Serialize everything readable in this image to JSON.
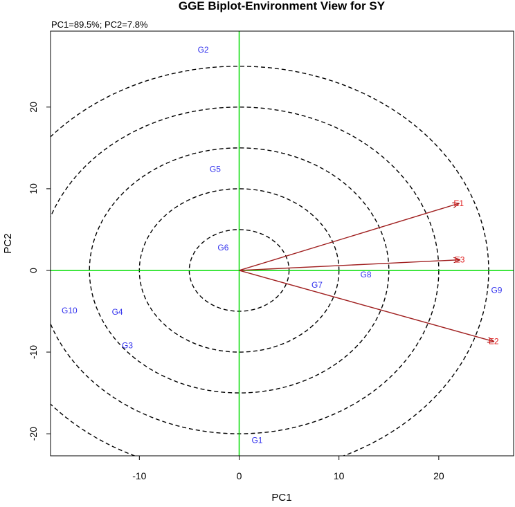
{
  "chart_data": {
    "type": "scatter",
    "title": "GGE Biplot-Environment View for SY",
    "subtitle": "PC1=89.5%; PC2=7.8%",
    "xlabel": "PC1",
    "ylabel": "PC2",
    "xlim": [
      -18.9,
      27.5
    ],
    "ylim": [
      -22.7,
      29.3
    ],
    "xticks": [
      -10,
      0,
      10,
      20
    ],
    "yticks": [
      -20,
      -10,
      0,
      10,
      20
    ],
    "genotypes": [
      {
        "label": "G1",
        "x": 1.8,
        "y": -20.8
      },
      {
        "label": "G2",
        "x": -3.6,
        "y": 27.0
      },
      {
        "label": "G3",
        "x": -11.2,
        "y": -9.2
      },
      {
        "label": "G4",
        "x": -12.2,
        "y": -5.1
      },
      {
        "label": "G5",
        "x": -2.4,
        "y": 12.4
      },
      {
        "label": "G6",
        "x": -1.6,
        "y": 2.8
      },
      {
        "label": "G7",
        "x": 7.8,
        "y": -1.8
      },
      {
        "label": "G8",
        "x": 12.7,
        "y": -0.5
      },
      {
        "label": "G9",
        "x": 25.8,
        "y": -2.4
      },
      {
        "label": "G10",
        "x": -17.0,
        "y": -4.9
      }
    ],
    "environments": [
      {
        "label": "E1",
        "x": 22.0,
        "y": 8.2
      },
      {
        "label": "E2",
        "x": 25.5,
        "y": -8.7
      },
      {
        "label": "E3",
        "x": 22.1,
        "y": 1.3
      }
    ],
    "concentric_circle_radii": [
      5,
      10,
      15,
      20,
      25
    ],
    "colors": {
      "genotype": "#3333ee",
      "environment": "#e02020",
      "vector": "#a02020",
      "axis_lines": "#00dd00",
      "circles": "#000000"
    }
  }
}
